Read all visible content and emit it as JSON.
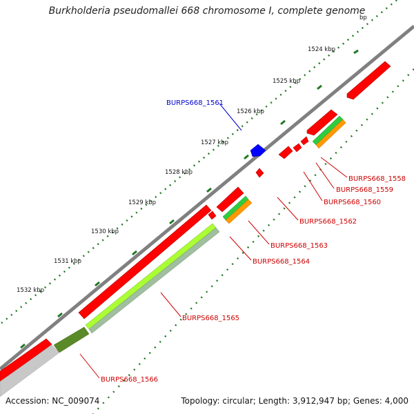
{
  "title": "Burkholderia pseudomallei 668 chromosome I, complete genome",
  "footer": {
    "accession": "Accession: NC_009074",
    "summary": "Topology: circular; Length: 3,912,947 bp; Genes: 4,000"
  },
  "axis": {
    "ticks": [
      "1524 kbp",
      "1525 kbp",
      "1526 kbp",
      "1527 kbp",
      "1528 kbp",
      "1529 kbp",
      "1530 kbp",
      "1531 kbp",
      "1532 kbp"
    ],
    "partial_tick": "bp"
  },
  "colors": {
    "backbone": "#808080",
    "forward_gene": "#0000ff",
    "reverse_gene": "#ff0000",
    "blue_label": "#0000cc",
    "red_label": "#cc0000",
    "green_track": "#2ecc40",
    "orange_track": "#ff9900",
    "lightgreen_track": "#aaff33",
    "olive_track": "#5a8a28",
    "gray_track": "#c8c8c8",
    "tick_dots": "#227722"
  },
  "gene_labels": [
    {
      "text": "BURPS668_1561",
      "color": "blue"
    },
    {
      "text": "BURPS668_1558",
      "color": "red"
    },
    {
      "text": "BURPS668_1559",
      "color": "red"
    },
    {
      "text": "BURPS668_1560",
      "color": "red"
    },
    {
      "text": "BURPS668_1562",
      "color": "red"
    },
    {
      "text": "BURPS668_1563",
      "color": "red"
    },
    {
      "text": "BURPS668_1564",
      "color": "red"
    },
    {
      "text": "BURPS668_1565",
      "color": "red"
    },
    {
      "text": "BURPS668_1566",
      "color": "red"
    }
  ]
}
